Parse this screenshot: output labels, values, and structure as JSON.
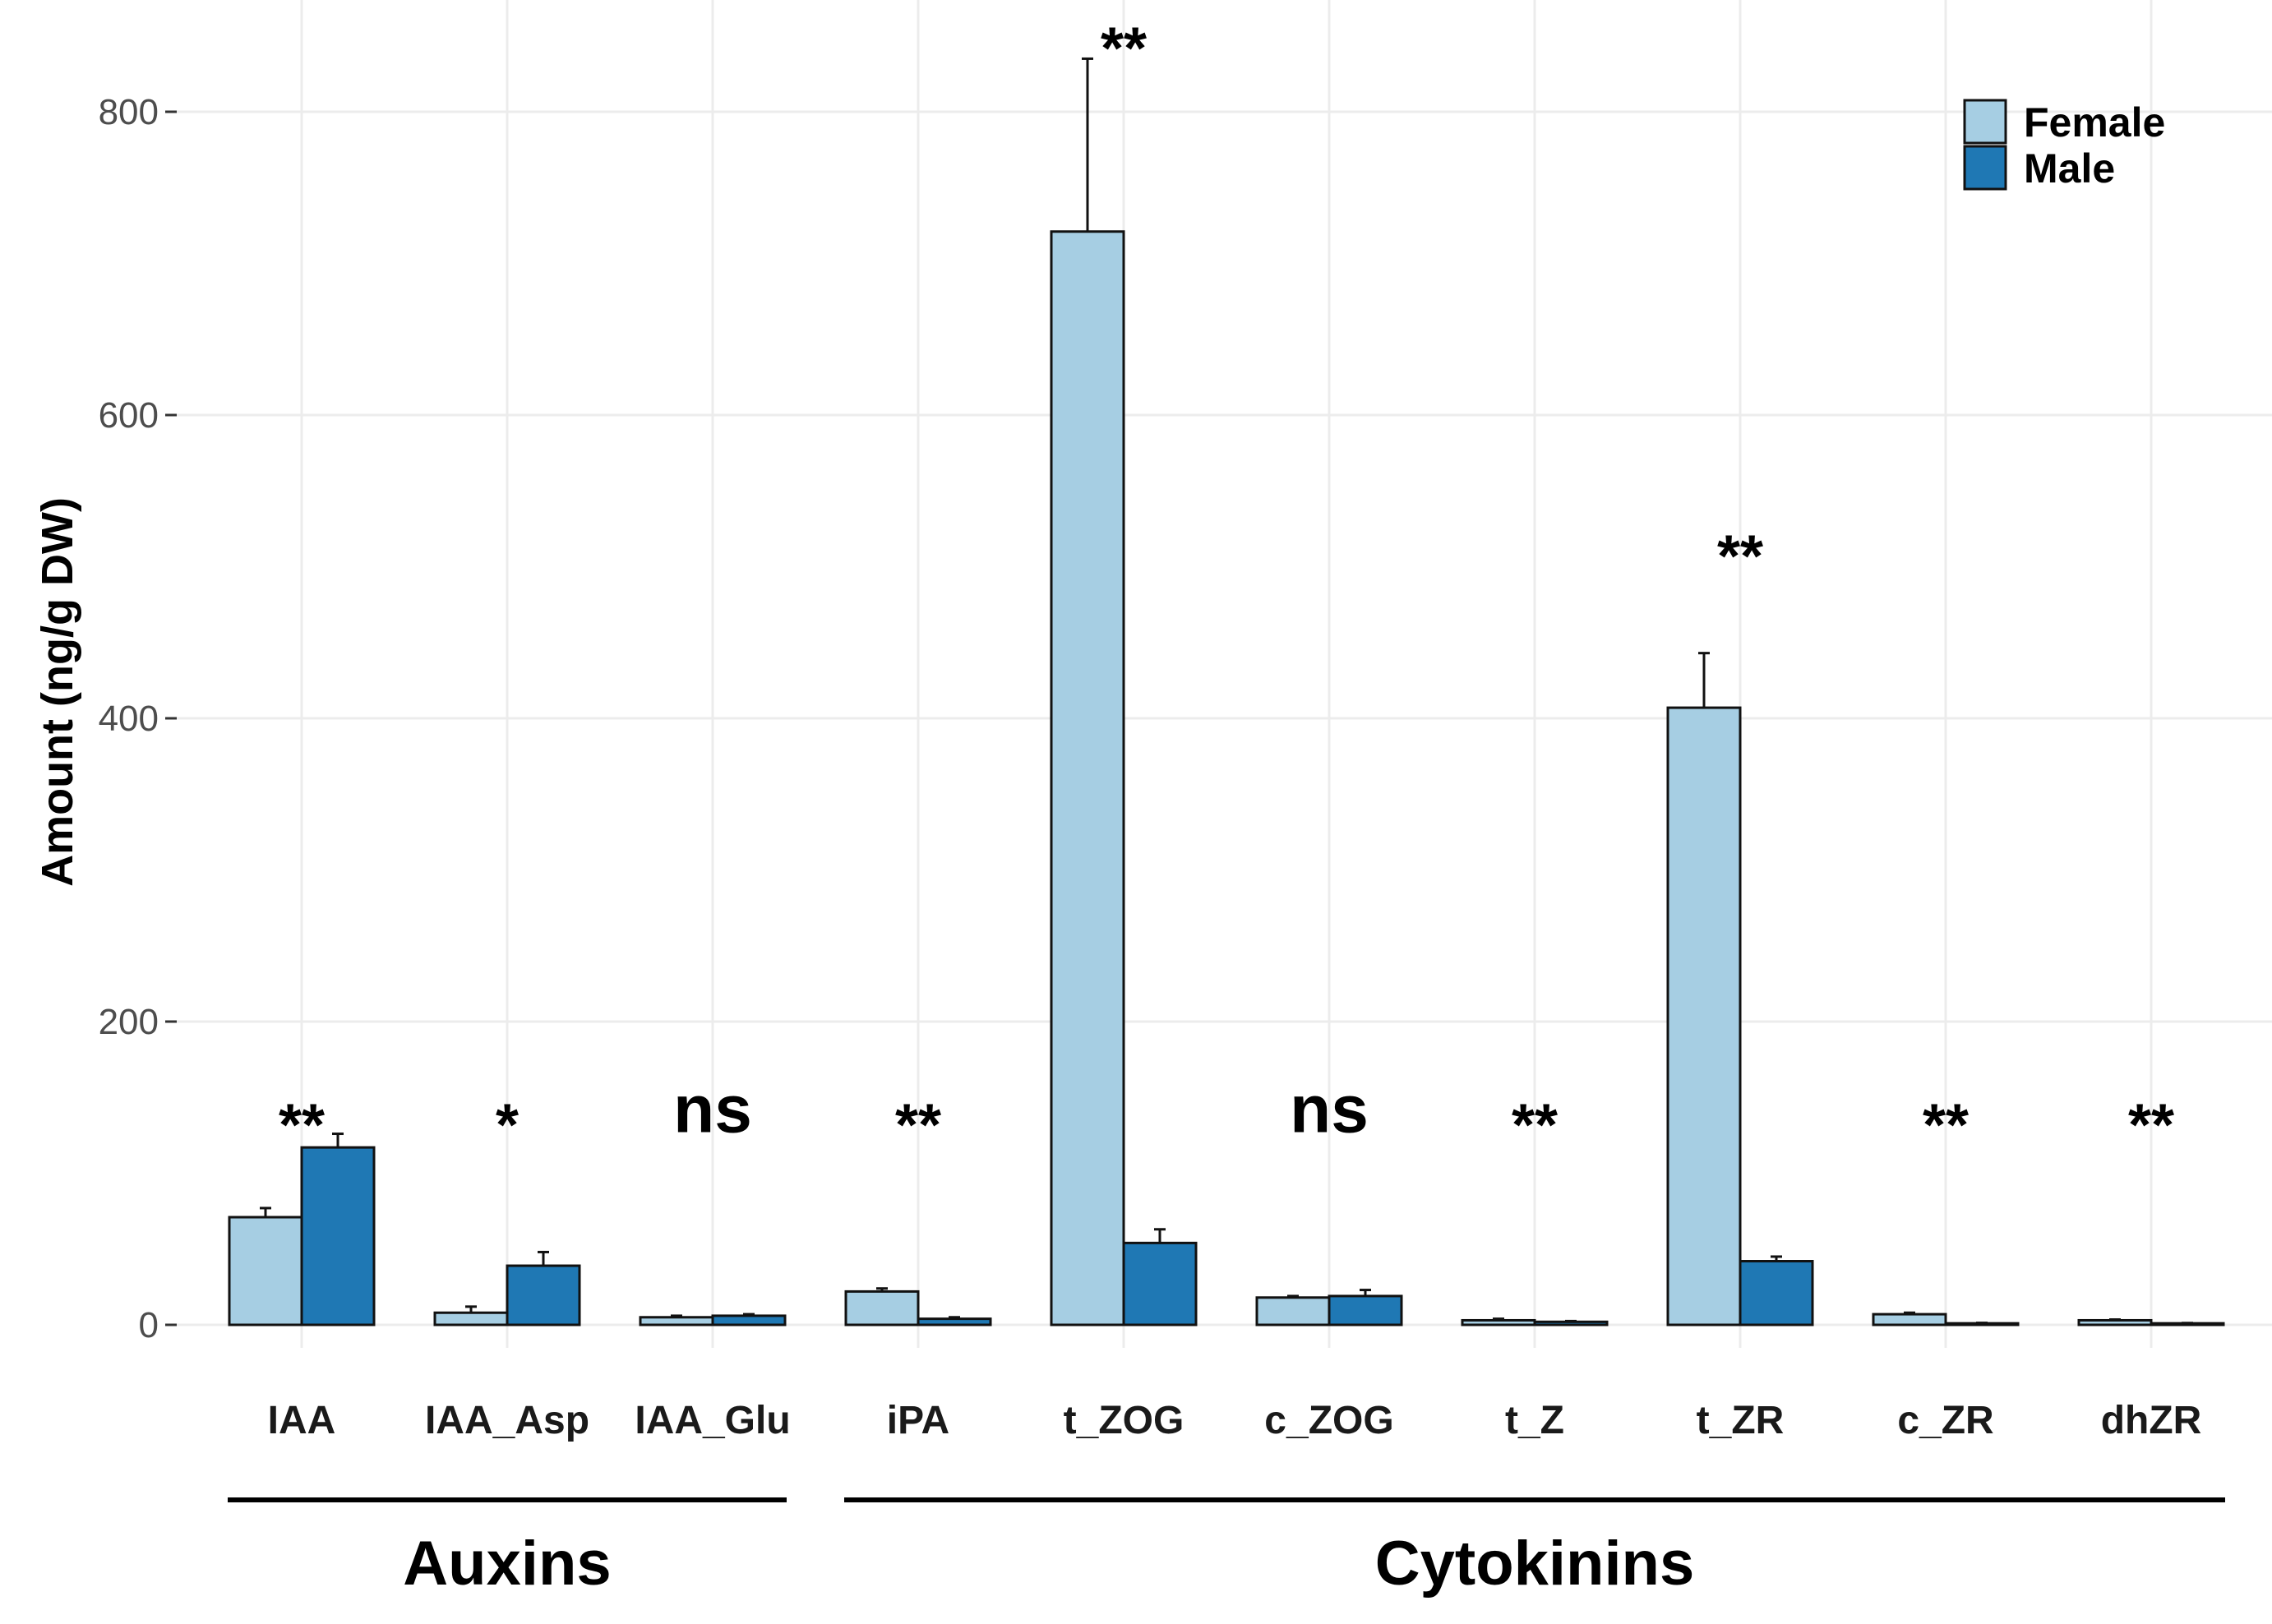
{
  "chart_data": {
    "type": "bar",
    "title": "",
    "xlabel": "",
    "ylabel": "Amount (ng/g DW)",
    "ylim": [
      -30,
      860
    ],
    "yticks": [
      0,
      200,
      400,
      600,
      800
    ],
    "categories": [
      "IAA",
      "IAA_Asp",
      "IAA_Glu",
      "iPA",
      "t_ZOG",
      "c_ZOG",
      "t_Z",
      "t_ZR",
      "c_ZR",
      "dhZR"
    ],
    "series": [
      {
        "name": "Female",
        "color": "#a6cee3",
        "values": [
          71,
          8,
          5,
          22,
          721,
          18,
          3,
          407,
          7,
          3
        ],
        "errors": [
          6,
          4,
          1,
          2,
          114,
          1,
          1,
          36,
          1,
          0.5
        ]
      },
      {
        "name": "Male",
        "color": "#1f78b4",
        "values": [
          117,
          39,
          6,
          4,
          54,
          19,
          2,
          42,
          1,
          1
        ],
        "errors": [
          9,
          9,
          1,
          1,
          9,
          4,
          0.5,
          3,
          0.3,
          0.2
        ]
      }
    ],
    "significance": [
      {
        "category": "IAA",
        "label": "**",
        "y": 150
      },
      {
        "category": "IAA_Asp",
        "label": "*",
        "y": 150
      },
      {
        "category": "IAA_Glu",
        "label": "ns",
        "y": 150
      },
      {
        "category": "iPA",
        "label": "**",
        "y": 150
      },
      {
        "category": "t_ZOG",
        "label": "**",
        "y": 860
      },
      {
        "category": "c_ZOG",
        "label": "ns",
        "y": 150
      },
      {
        "category": "t_Z",
        "label": "**",
        "y": 150
      },
      {
        "category": "t_ZR",
        "label": "**",
        "y": 525
      },
      {
        "category": "c_ZR",
        "label": "**",
        "y": 150
      },
      {
        "category": "dhZR",
        "label": "**",
        "y": 150
      }
    ],
    "groups": [
      {
        "label": "Auxins",
        "categories": [
          "IAA",
          "IAA_Asp",
          "IAA_Glu"
        ]
      },
      {
        "label": "Cytokinins",
        "categories": [
          "iPA",
          "t_ZOG",
          "c_ZOG",
          "t_Z",
          "t_ZR",
          "c_ZR",
          "dhZR"
        ]
      }
    ],
    "legend": {
      "position": "top-right",
      "entries": [
        "Female",
        "Male"
      ]
    }
  }
}
